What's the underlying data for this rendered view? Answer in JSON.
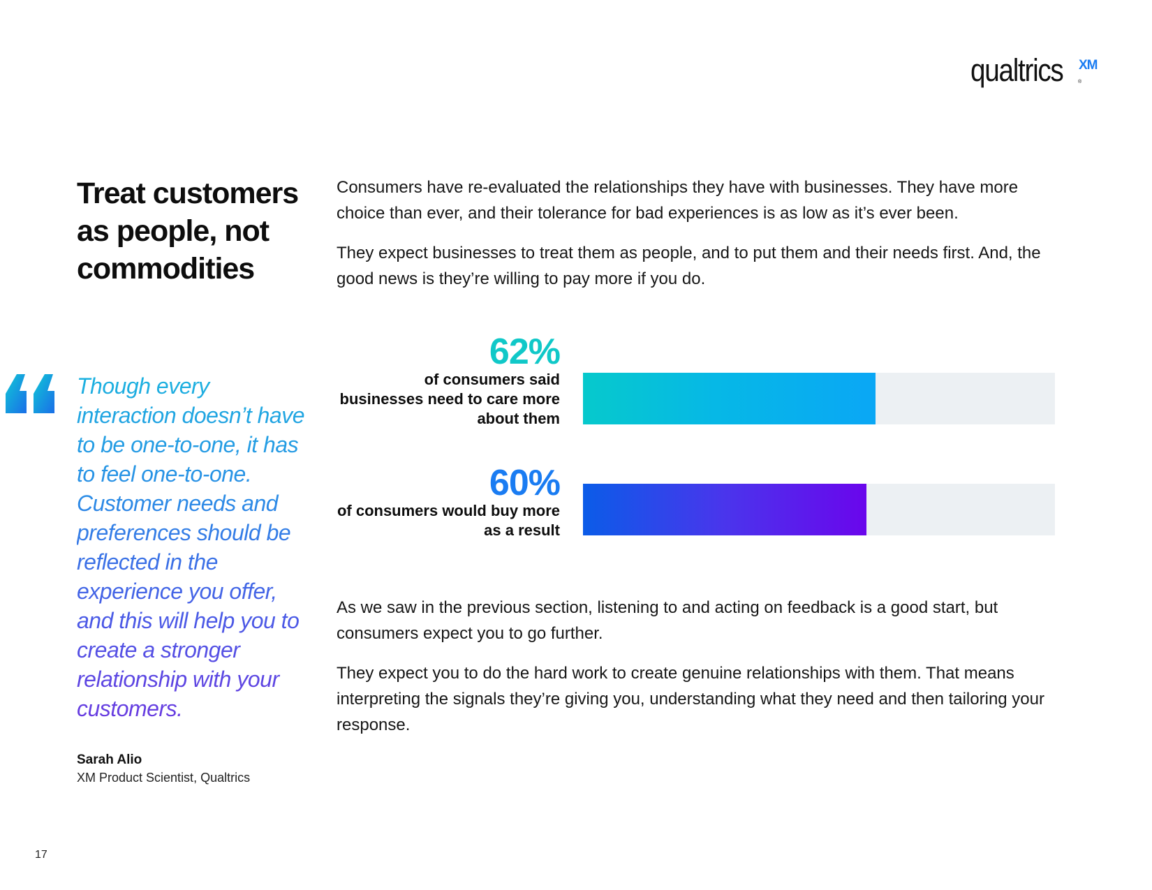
{
  "logo": {
    "word": "qualtrics",
    "superscript": "XM",
    "registered": "®"
  },
  "heading": "Treat customers as people, not commodities",
  "intro": {
    "p1": "Consumers have re-evaluated the relationships they have with businesses. They have more choice than ever, and their tolerance for bad experiences is as low as it’s ever been.",
    "p2": "They expect businesses to treat them as people, and to put them and their needs first. And, the good news is they’re willing to pay more if you do."
  },
  "quote": {
    "text": "Though every interaction doesn’t have to be one-to-one, it has to feel one-to-one. Customer needs and preferences should be reflected in the experience you offer, and this will help you to create a stronger relationship with your customers.",
    "author": "Sarah Alio",
    "role": "XM Product Scientist, Qualtrics"
  },
  "chart_data": {
    "type": "bar",
    "orientation": "horizontal",
    "ylim": [
      0,
      100
    ],
    "categories": [
      "of consumers said businesses need to care more about them",
      "of consumers would buy more as a result"
    ],
    "values": [
      62,
      60
    ],
    "value_labels": [
      "62%",
      "60%"
    ],
    "colors": [
      "#10c8c8",
      "#1a7cf2"
    ],
    "track_color": "#ecf0f3"
  },
  "outro": {
    "p1": "As we saw in the previous section, listening to and acting on feedback is a good start, but consumers expect you to go further.",
    "p2": "They expect you to do the hard work to create genuine relationships with them. That means interpreting the signals they’re giving you, understanding what they need and then tailoring your response."
  },
  "page_number": "17"
}
